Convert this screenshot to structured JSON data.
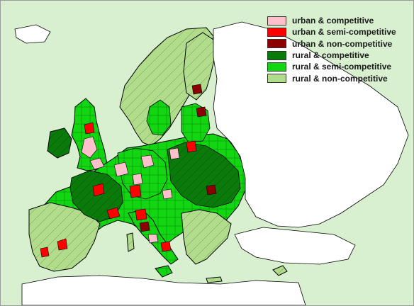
{
  "map": {
    "background": "#d8f0d0",
    "outline": "#000000"
  },
  "legend": {
    "items": [
      {
        "label": "urban & competitive",
        "color": "#ffc0cb"
      },
      {
        "label": "urban & semi-competitive",
        "color": "#ff0000"
      },
      {
        "label": "urban & non-competitive",
        "color": "#8b0000"
      },
      {
        "label": "rural & competitive",
        "color": "#0a7a0a"
      },
      {
        "label": "rural & semi-competitive",
        "color": "#12d612"
      },
      {
        "label": "rural & non-competitive",
        "color": "#b0dc8c"
      }
    ]
  }
}
